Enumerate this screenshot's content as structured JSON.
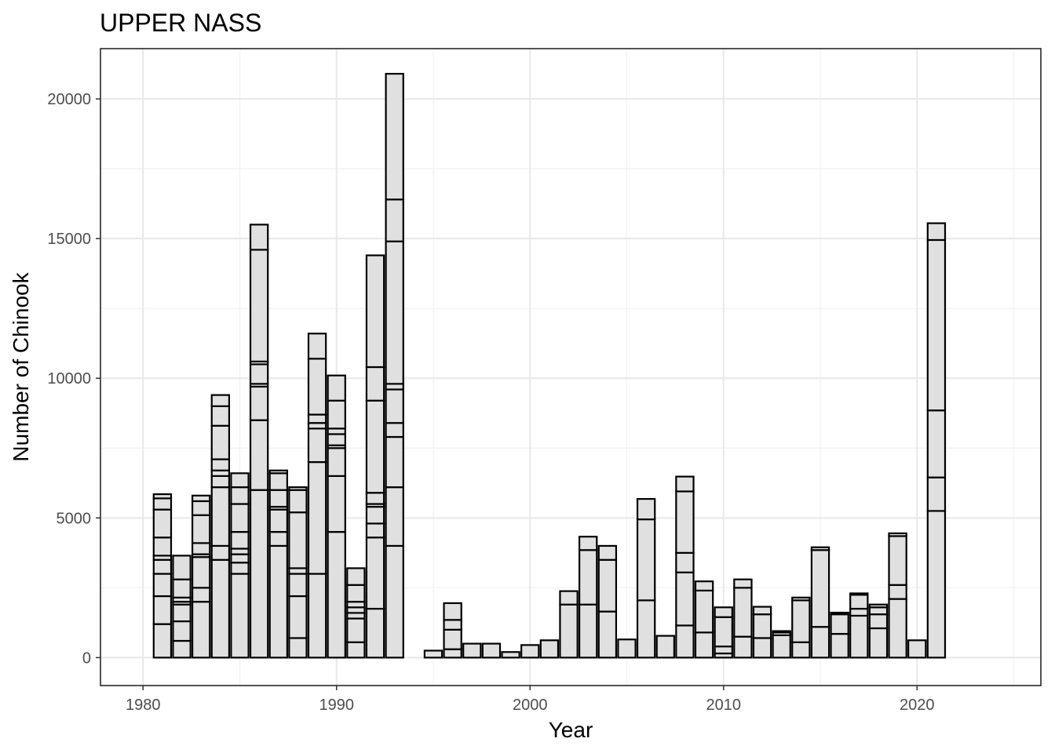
{
  "chart_data": {
    "type": "bar",
    "stacked": true,
    "title": "UPPER NASS",
    "xlabel": "Year",
    "ylabel": "Number of Chinook",
    "xlim": [
      1977.8,
      2026.4
    ],
    "ylim": [
      -1000,
      21800
    ],
    "xticks": [
      1980,
      1990,
      2000,
      2010,
      2020
    ],
    "yticks": [
      0,
      5000,
      10000,
      15000,
      20000
    ],
    "grid": true,
    "bar_color": "#e0e0e0",
    "edge_color": "#000000",
    "bars": [
      {
        "year": 1981,
        "segments": [
          1200,
          1000,
          800,
          500,
          150,
          650,
          1000,
          400,
          150
        ]
      },
      {
        "year": 1982,
        "segments": [
          600,
          700,
          600,
          100,
          150,
          650,
          850
        ]
      },
      {
        "year": 1983,
        "segments": [
          2000,
          500,
          1100,
          100,
          400,
          1000,
          500,
          200
        ]
      },
      {
        "year": 1984,
        "segments": [
          3500,
          500,
          2100,
          400,
          200,
          400,
          1200,
          700,
          400
        ]
      },
      {
        "year": 1985,
        "segments": [
          3000,
          400,
          300,
          200,
          600,
          1000,
          600,
          500
        ]
      },
      {
        "year": 1986,
        "segments": [
          6000,
          2500,
          1200,
          100,
          700,
          100,
          4000,
          900
        ]
      },
      {
        "year": 1987,
        "segments": [
          4000,
          500,
          800,
          100,
          600,
          600,
          100
        ]
      },
      {
        "year": 1988,
        "segments": [
          700,
          1500,
          800,
          200,
          2000,
          800,
          100
        ]
      },
      {
        "year": 1989,
        "segments": [
          3000,
          4000,
          1200,
          200,
          300,
          2000,
          900
        ]
      },
      {
        "year": 1990,
        "segments": [
          4500,
          2000,
          1000,
          100,
          400,
          200,
          1000,
          900
        ]
      },
      {
        "year": 1991,
        "segments": [
          550,
          850,
          200,
          200,
          200,
          600,
          600
        ]
      },
      {
        "year": 1992,
        "segments": [
          1750,
          2550,
          500,
          600,
          100,
          400,
          3300,
          1200,
          4000
        ]
      },
      {
        "year": 1993,
        "segments": [
          4000,
          2100,
          1800,
          500,
          1200,
          200,
          5100,
          1500,
          4500
        ]
      },
      {
        "year": 1995,
        "segments": [
          250
        ]
      },
      {
        "year": 1996,
        "segments": [
          300,
          700,
          350,
          600
        ]
      },
      {
        "year": 1997,
        "segments": [
          500
        ]
      },
      {
        "year": 1998,
        "segments": [
          500
        ]
      },
      {
        "year": 1999,
        "segments": [
          200
        ]
      },
      {
        "year": 2000,
        "segments": [
          450
        ]
      },
      {
        "year": 2001,
        "segments": [
          620
        ]
      },
      {
        "year": 2002,
        "segments": [
          1900,
          480
        ]
      },
      {
        "year": 2003,
        "segments": [
          1900,
          1950,
          480
        ]
      },
      {
        "year": 2004,
        "segments": [
          1650,
          1850,
          500
        ]
      },
      {
        "year": 2005,
        "segments": [
          650
        ]
      },
      {
        "year": 2006,
        "segments": [
          2050,
          2900,
          730
        ]
      },
      {
        "year": 2007,
        "segments": [
          780
        ]
      },
      {
        "year": 2008,
        "segments": [
          1150,
          1900,
          700,
          2200,
          530
        ]
      },
      {
        "year": 2009,
        "segments": [
          900,
          1500,
          330
        ]
      },
      {
        "year": 2010,
        "segments": [
          150,
          250,
          1050,
          350
        ]
      },
      {
        "year": 2011,
        "segments": [
          750,
          1750,
          300
        ]
      },
      {
        "year": 2012,
        "segments": [
          700,
          850,
          270
        ]
      },
      {
        "year": 2013,
        "segments": [
          800,
          100,
          50
        ]
      },
      {
        "year": 2014,
        "segments": [
          550,
          1500,
          100
        ]
      },
      {
        "year": 2015,
        "segments": [
          1100,
          2750,
          100
        ]
      },
      {
        "year": 2016,
        "segments": [
          850,
          700,
          60
        ]
      },
      {
        "year": 2017,
        "segments": [
          1500,
          250,
          500,
          50
        ]
      },
      {
        "year": 2018,
        "segments": [
          1050,
          500,
          250,
          100
        ]
      },
      {
        "year": 2019,
        "segments": [
          2100,
          500,
          1750,
          100
        ]
      },
      {
        "year": 2020,
        "segments": [
          620
        ]
      },
      {
        "year": 2021,
        "segments": [
          5250,
          1200,
          2400,
          6100,
          600
        ]
      }
    ]
  }
}
